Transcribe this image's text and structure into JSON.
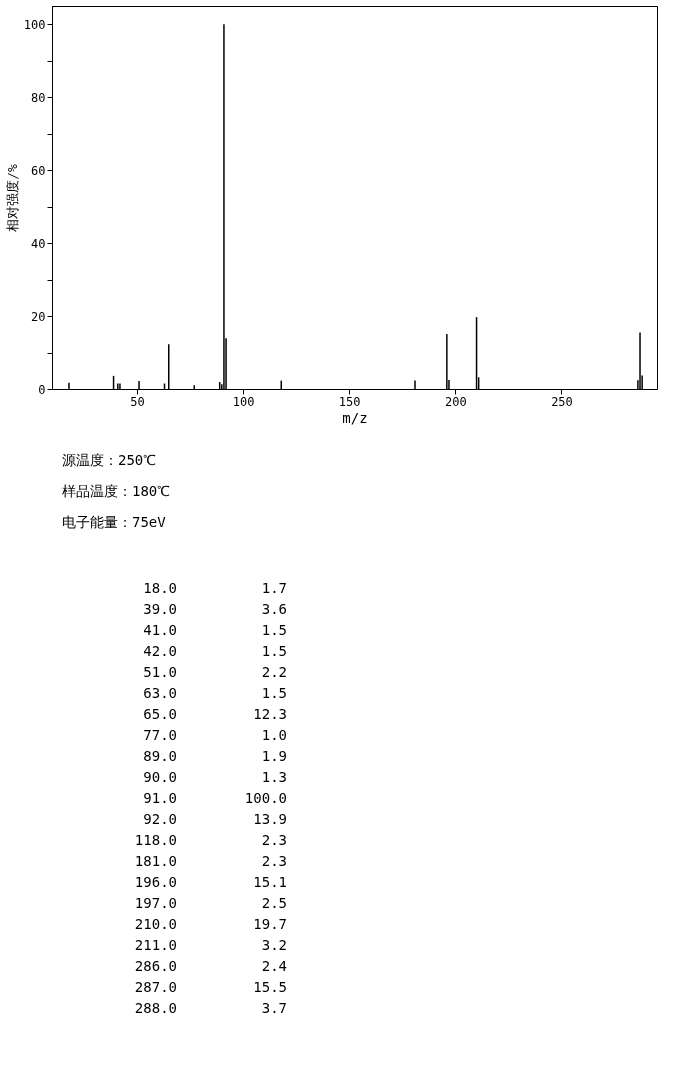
{
  "chart_data": [
    {
      "type": "bar",
      "x": [
        18,
        39,
        41,
        42,
        51,
        63,
        65,
        77,
        89,
        90,
        91,
        92,
        118,
        181,
        196,
        197,
        210,
        211,
        286,
        287,
        288
      ],
      "series": [
        {
          "color": "#000000",
          "values": [
            1.7,
            3.6,
            1.5,
            1.5,
            2.2,
            1.5,
            12.3,
            1.0,
            1.9,
            1.3,
            100.0,
            13.9,
            2.3,
            2.3,
            15.1,
            2.5,
            19.7,
            3.2,
            2.4,
            15.5,
            3.7
          ]
        }
      ],
      "xlabel": "m/z",
      "ylabel": "相对强度/%",
      "xlim": [
        10,
        295
      ],
      "xticks": [
        50,
        100,
        150,
        200,
        250
      ],
      "ylim": [
        0,
        105
      ],
      "yticks": [
        0,
        {
          "value": 10,
          "label": null
        },
        20,
        {
          "value": 30,
          "label": null
        },
        40,
        {
          "value": 50,
          "label": null
        },
        60,
        {
          "value": 70,
          "label": null
        },
        80,
        {
          "value": 90,
          "label": null
        },
        100
      ],
      "grid": false
    },
    {
      "type": "other",
      "annotations": [
        "源温度：250℃",
        "样品温度：180℃",
        "电子能量：75eV"
      ],
      "categories": [
        "18.0",
        "39.0",
        "41.0",
        "42.0",
        "51.0",
        "63.0",
        "65.0",
        "77.0",
        "89.0",
        "90.0",
        "91.0",
        "92.0",
        "118.0",
        "181.0",
        "196.0",
        "197.0",
        "210.0",
        "211.0",
        "286.0",
        "287.0",
        "288.0"
      ],
      "value_labels": [
        "1.7",
        "3.6",
        "1.5",
        "1.5",
        "2.2",
        "1.5",
        "12.3",
        "1.0",
        "1.9",
        "1.3",
        "100.0",
        "13.9",
        "2.3",
        "2.3",
        "15.1",
        "2.5",
        "19.7",
        "3.2",
        "2.4",
        "15.5",
        "3.7"
      ]
    }
  ]
}
